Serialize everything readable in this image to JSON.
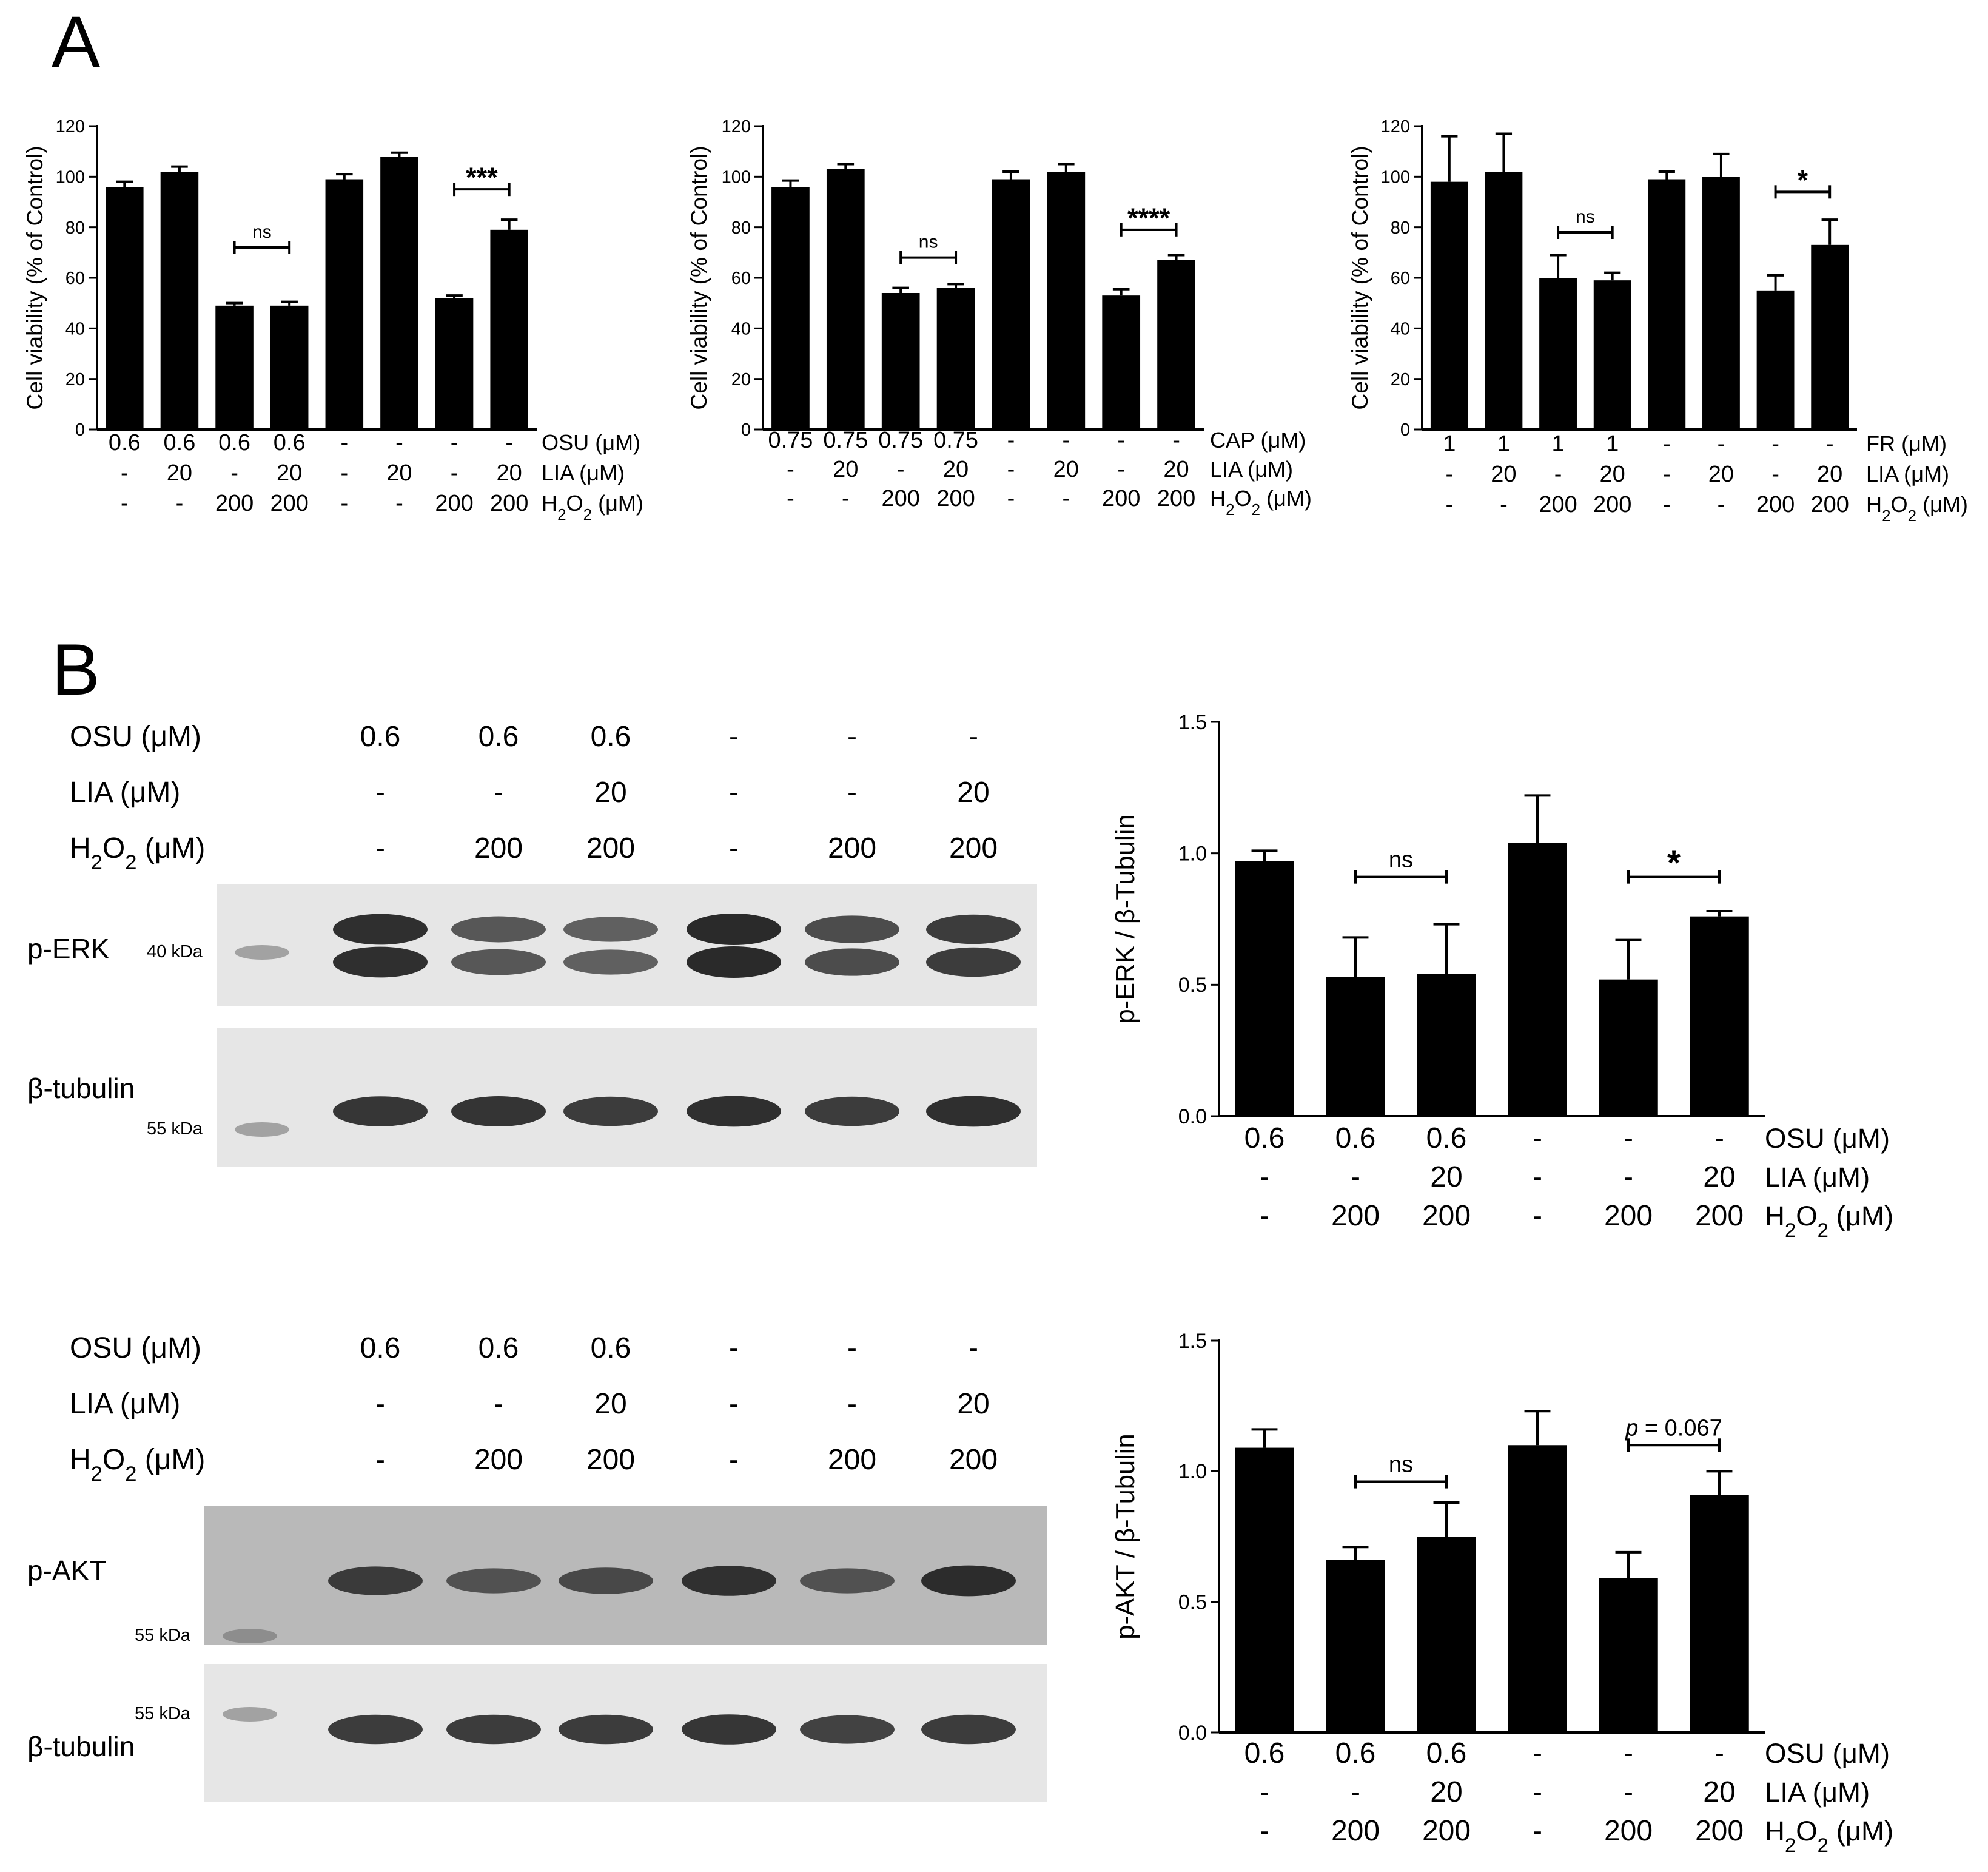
{
  "figure": {
    "panel_a_letter": "A",
    "panel_b_letter": "B"
  },
  "colors": {
    "bar": "#000000",
    "axis": "#000000",
    "background": "#ffffff",
    "blot_bg_dark": "#b9b9b9",
    "blot_bg_light": "#e6e6e6",
    "band": "#202020"
  },
  "chart_data": [
    {
      "id": "A1",
      "type": "bar",
      "ylabel": "Cell viability (% of Control)",
      "ylim": [
        0,
        120
      ],
      "yticks": [
        0,
        20,
        40,
        60,
        80,
        100,
        120
      ],
      "values": [
        96,
        102,
        49,
        49,
        99,
        108,
        52,
        79
      ],
      "errors": [
        2,
        2,
        1,
        1.5,
        2,
        1.5,
        1,
        4
      ],
      "condition_rows": [
        {
          "name": "OSU (μM)",
          "values": [
            "0.6",
            "0.6",
            "0.6",
            "0.6",
            "-",
            "-",
            "-",
            "-"
          ]
        },
        {
          "name": "LIA (μM)",
          "values": [
            "-",
            "20",
            "-",
            "20",
            "-",
            "20",
            "-",
            "20"
          ]
        },
        {
          "name": "H2O2 (μM)",
          "values": [
            "-",
            "-",
            "200",
            "200",
            "-",
            "-",
            "200",
            "200"
          ]
        }
      ],
      "annotations": [
        {
          "from": 2,
          "to": 3,
          "level": 72,
          "text": "ns"
        },
        {
          "from": 6,
          "to": 7,
          "level": 95,
          "text": "***"
        }
      ]
    },
    {
      "id": "A2",
      "type": "bar",
      "ylabel": "Cell viability (% of Control)",
      "ylim": [
        0,
        120
      ],
      "yticks": [
        0,
        20,
        40,
        60,
        80,
        100,
        120
      ],
      "values": [
        96,
        103,
        54,
        56,
        99,
        102,
        53,
        67
      ],
      "errors": [
        2.5,
        2,
        2,
        1.5,
        3,
        3,
        2.5,
        2
      ],
      "condition_rows": [
        {
          "name": "CAP  (μM)",
          "values": [
            "0.75",
            "0.75",
            "0.75",
            "0.75",
            "-",
            "-",
            "-",
            "-"
          ]
        },
        {
          "name": "LIA  (μM)",
          "values": [
            "-",
            "20",
            "-",
            "20",
            "-",
            "20",
            "-",
            "20"
          ]
        },
        {
          "name": "H2O2 (μM)",
          "values": [
            "-",
            "-",
            "200",
            "200",
            "-",
            "-",
            "200",
            "200"
          ]
        }
      ],
      "annotations": [
        {
          "from": 2,
          "to": 3,
          "level": 68,
          "text": "ns"
        },
        {
          "from": 6,
          "to": 7,
          "level": 79,
          "text": "****"
        }
      ]
    },
    {
      "id": "A3",
      "type": "bar",
      "ylabel": "Cell viability (% of Control)",
      "ylim": [
        0,
        120
      ],
      "yticks": [
        0,
        20,
        40,
        60,
        80,
        100,
        120
      ],
      "values": [
        98,
        102,
        60,
        59,
        99,
        100,
        55,
        73
      ],
      "errors": [
        18,
        15,
        9,
        3,
        3,
        9,
        6,
        10
      ],
      "condition_rows": [
        {
          "name": "FR (μM)",
          "values": [
            "1",
            "1",
            "1",
            "1",
            "-",
            "-",
            "-",
            "-"
          ]
        },
        {
          "name": "LIA (μM)",
          "values": [
            "-",
            "20",
            "-",
            "20",
            "-",
            "20",
            "-",
            "20"
          ]
        },
        {
          "name": "H2O2 (μM)",
          "values": [
            "-",
            "-",
            "200",
            "200",
            "-",
            "-",
            "200",
            "200"
          ]
        }
      ],
      "annotations": [
        {
          "from": 2,
          "to": 3,
          "level": 78,
          "text": "ns"
        },
        {
          "from": 6,
          "to": 7,
          "level": 94,
          "text": "*"
        }
      ]
    },
    {
      "id": "B1",
      "type": "bar",
      "ylabel": "p-ERK / β-Tubulin",
      "ylim": [
        0,
        1.5
      ],
      "yticks": [
        "0.0",
        "0.5",
        "1.0",
        "1.5"
      ],
      "values": [
        0.97,
        0.53,
        0.54,
        1.04,
        0.52,
        0.76
      ],
      "errors": [
        0.04,
        0.15,
        0.19,
        0.18,
        0.15,
        0.02
      ],
      "condition_rows": [
        {
          "name": "OSU (μM)",
          "values": [
            "0.6",
            "0.6",
            "0.6",
            "-",
            "-",
            "-"
          ]
        },
        {
          "name": "LIA  (μM)",
          "values": [
            "-",
            "-",
            "20",
            "-",
            "-",
            "20"
          ]
        },
        {
          "name": "H2O2 (μM)",
          "values": [
            "-",
            "200",
            "200",
            "-",
            "200",
            "200"
          ]
        }
      ],
      "annotations": [
        {
          "from": 1,
          "to": 2,
          "level": 0.91,
          "text": "ns"
        },
        {
          "from": 4,
          "to": 5,
          "level": 0.91,
          "text": "*"
        }
      ]
    },
    {
      "id": "B2",
      "type": "bar",
      "ylabel": "p-AKT / β-Tubulin",
      "ylim": [
        0,
        1.5
      ],
      "yticks": [
        "0.0",
        "0.5",
        "1.0",
        "1.5"
      ],
      "values": [
        1.09,
        0.66,
        0.75,
        1.1,
        0.59,
        0.91
      ],
      "errors": [
        0.07,
        0.05,
        0.13,
        0.13,
        0.1,
        0.09
      ],
      "condition_rows": [
        {
          "name": "OSU (μM)",
          "values": [
            "0.6",
            "0.6",
            "0.6",
            "-",
            "-",
            "-"
          ]
        },
        {
          "name": "LIA  (μM)",
          "values": [
            "-",
            "-",
            "20",
            "-",
            "-",
            "20"
          ]
        },
        {
          "name": "H2O2 (μM)",
          "values": [
            "-",
            "200",
            "200",
            "-",
            "200",
            "200"
          ]
        }
      ],
      "annotations": [
        {
          "from": 1,
          "to": 2,
          "level": 0.96,
          "text": "ns"
        },
        {
          "from": 4,
          "to": 5,
          "level": 1.1,
          "text": "p = 0.067"
        }
      ]
    }
  ],
  "blots": [
    {
      "id": "erk",
      "header_rows": [
        {
          "name": "OSU (μM)",
          "values": [
            "0.6",
            "0.6",
            "0.6",
            "-",
            "-",
            "-"
          ]
        },
        {
          "name": "LIA (μM)",
          "values": [
            "-",
            "-",
            "20",
            "-",
            "-",
            "20"
          ]
        },
        {
          "name": "H2O2 (μM)",
          "values": [
            "-",
            "200",
            "200",
            "-",
            "200",
            "200"
          ]
        }
      ],
      "strips": [
        {
          "label": "p-ERK",
          "marker": "40 kDa",
          "tone": "light"
        },
        {
          "label": "β-tubulin",
          "marker": "55 kDa",
          "tone": "light"
        }
      ]
    },
    {
      "id": "akt",
      "header_rows": [
        {
          "name": "OSU (μM)",
          "values": [
            "0.6",
            "0.6",
            "0.6",
            "-",
            "-",
            "-"
          ]
        },
        {
          "name": "LIA (μM)",
          "values": [
            "-",
            "-",
            "20",
            "-",
            "-",
            "20"
          ]
        },
        {
          "name": "H2O2 (μM)",
          "values": [
            "-",
            "200",
            "200",
            "-",
            "200",
            "200"
          ]
        }
      ],
      "strips": [
        {
          "label": "p-AKT",
          "marker": "55 kDa",
          "tone": "dark"
        },
        {
          "label": "β-tubulin",
          "marker": "55 kDa",
          "tone": "light"
        }
      ]
    }
  ]
}
